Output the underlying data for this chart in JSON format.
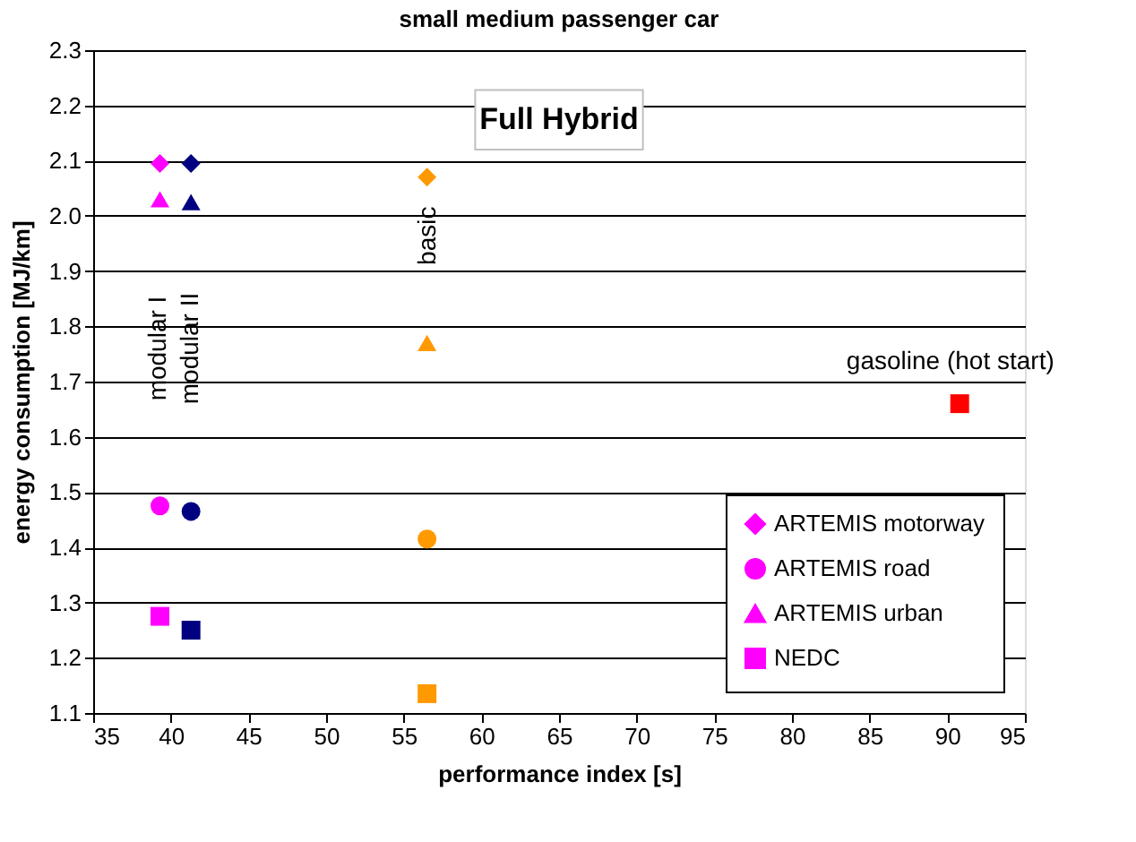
{
  "chart_data": {
    "type": "scatter",
    "title": "small medium passenger car",
    "xlabel": "performance index [s]",
    "ylabel": "energy consumption [MJ/km]",
    "xlim": [
      35,
      95
    ],
    "xticks": [
      35,
      40,
      45,
      50,
      55,
      60,
      65,
      70,
      75,
      80,
      85,
      90,
      95
    ],
    "ylim": [
      1.1,
      2.3
    ],
    "yticks": [
      {
        "value": 1.1,
        "label": "1.1"
      },
      {
        "value": 1.2,
        "label": "1.2"
      },
      {
        "value": 1.3,
        "label": "1.3"
      },
      {
        "value": 1.4,
        "label": "1.4"
      },
      {
        "value": 1.5,
        "label": "1.5"
      },
      {
        "value": 1.6,
        "label": "1.6"
      },
      {
        "value": 1.7,
        "label": "1.7"
      },
      {
        "value": 1.8,
        "label": "1.8"
      },
      {
        "value": 1.9,
        "label": "1.9"
      },
      {
        "value": 2.0,
        "label": "2.0"
      },
      {
        "value": 2.1,
        "label": "2.1"
      },
      {
        "value": 2.2,
        "label": "2.2"
      },
      {
        "value": 2.3,
        "label": "2.3"
      }
    ],
    "grid": "y",
    "legend": "bottom right",
    "series": [
      {
        "name": "ARTEMIS motorway",
        "color": "#ff00ff",
        "marker": "diamond",
        "x": [
          39.3,
          41.3,
          56.5
        ],
        "values": [
          2.095,
          2.095,
          2.07
        ],
        "colors": [
          "#ff00ff",
          "#000080",
          "#ff9900"
        ]
      },
      {
        "name": "ARTEMIS road",
        "color": "#ff00ff",
        "marker": "circle",
        "x": [
          39.3,
          41.3,
          56.5
        ],
        "values": [
          1.475,
          1.465,
          1.415
        ],
        "colors": [
          "#ff00ff",
          "#000080",
          "#ff9900"
        ]
      },
      {
        "name": "ARTEMIS urban",
        "color": "#ff00ff",
        "marker": "triangle",
        "x": [
          39.3,
          41.3,
          56.5
        ],
        "values": [
          2.03,
          2.025,
          1.77
        ],
        "colors": [
          "#ff00ff",
          "#000080",
          "#ff9900"
        ]
      },
      {
        "name": "NEDC",
        "color": "#ff00ff",
        "marker": "square",
        "x": [
          39.3,
          41.3,
          56.5,
          90.8
        ],
        "values": [
          1.275,
          1.25,
          1.135,
          1.66
        ],
        "colors": [
          "#ff00ff",
          "#000080",
          "#ff9900",
          "#ff0000"
        ]
      }
    ],
    "annotations": [
      "Full Hybrid",
      "modular I",
      "modular II",
      "basic",
      "gasoline (hot start)"
    ]
  }
}
